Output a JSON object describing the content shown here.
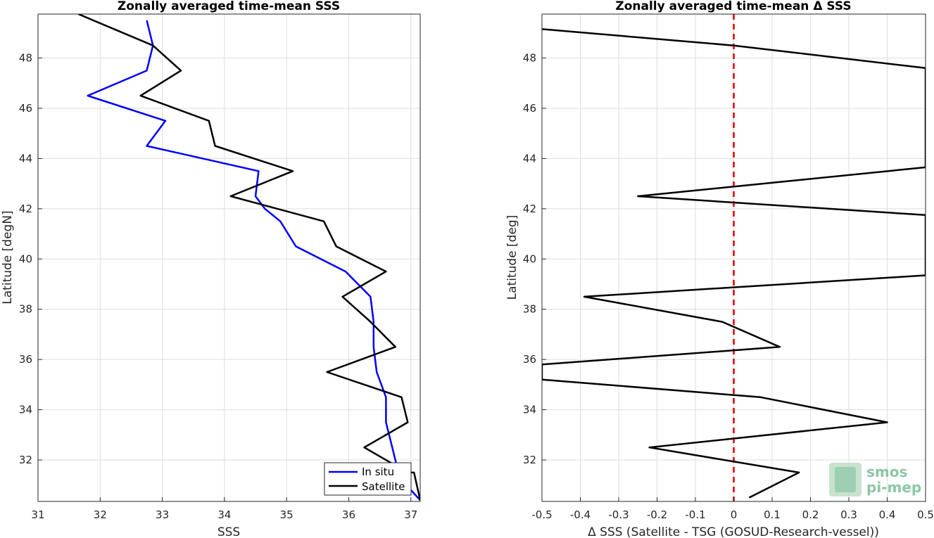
{
  "chart_data": [
    {
      "type": "line",
      "title": "Zonally averaged time-mean SSS",
      "xlabel": "SSS",
      "ylabel": "Latitude [degN]",
      "xlim": [
        31,
        37.15
      ],
      "ylim": [
        30.35,
        49.75
      ],
      "xticks": [
        31,
        32,
        33,
        34,
        35,
        36,
        37
      ],
      "yticks": [
        32,
        34,
        36,
        38,
        40,
        42,
        44,
        46,
        48
      ],
      "grid": true,
      "legend_position": "bottom-right",
      "series": [
        {
          "name": "In situ",
          "color": "#0000ff",
          "points": [
            [
              32.75,
              49.5
            ],
            [
              32.85,
              48.5
            ],
            [
              32.75,
              47.5
            ],
            [
              31.8,
              46.5
            ],
            [
              33.05,
              45.5
            ],
            [
              32.75,
              44.5
            ],
            [
              34.55,
              43.5
            ],
            [
              34.5,
              42.5
            ],
            [
              34.65,
              42.0
            ],
            [
              34.9,
              41.5
            ],
            [
              35.15,
              40.5
            ],
            [
              35.95,
              39.5
            ],
            [
              36.35,
              38.5
            ],
            [
              36.4,
              37.5
            ],
            [
              36.4,
              36.5
            ],
            [
              36.45,
              35.5
            ],
            [
              36.6,
              34.5
            ],
            [
              36.6,
              33.5
            ],
            [
              36.7,
              32.5
            ],
            [
              36.8,
              31.5
            ],
            [
              37.0,
              30.8
            ],
            [
              37.15,
              30.4
            ]
          ]
        },
        {
          "name": "Satellite",
          "color": "#000000",
          "points": [
            [
              31.65,
              49.75
            ],
            [
              32.85,
              48.5
            ],
            [
              33.3,
              47.5
            ],
            [
              32.65,
              46.5
            ],
            [
              33.75,
              45.5
            ],
            [
              33.85,
              44.5
            ],
            [
              35.1,
              43.5
            ],
            [
              34.1,
              42.5
            ],
            [
              35.6,
              41.5
            ],
            [
              35.8,
              40.5
            ],
            [
              36.6,
              39.5
            ],
            [
              35.9,
              38.5
            ],
            [
              36.35,
              37.5
            ],
            [
              36.75,
              36.5
            ],
            [
              35.65,
              35.5
            ],
            [
              36.85,
              34.5
            ],
            [
              36.95,
              33.5
            ],
            [
              36.25,
              32.5
            ],
            [
              36.95,
              31.5
            ],
            [
              37.05,
              31.5
            ],
            [
              37.15,
              30.4
            ]
          ]
        }
      ]
    },
    {
      "type": "line",
      "title": "Zonally averaged time-mean Δ SSS",
      "xlabel": "Δ SSS (Satellite - TSG (GOSUD-Research-vessel))",
      "ylabel": "Latitude [deg]",
      "xlim": [
        -0.5,
        0.5
      ],
      "ylim": [
        30.35,
        49.75
      ],
      "xticks": [
        -0.5,
        -0.4,
        -0.3,
        -0.2,
        -0.1,
        0,
        0.1,
        0.2,
        0.3,
        0.4,
        0.5
      ],
      "xtick_labels": [
        "-0.5",
        "-0.4",
        "-0.3",
        "-0.2",
        "-0.1",
        "0",
        "0.1",
        "0.2",
        "0.3",
        "0.4",
        "0.5"
      ],
      "yticks": [
        32,
        34,
        36,
        38,
        40,
        42,
        44,
        46,
        48
      ],
      "grid": true,
      "reference_line": {
        "x": 0,
        "color": "#e00000",
        "style": "dashed"
      },
      "series": [
        {
          "color": "#000000",
          "points": [
            [
              -0.5,
              49.15
            ],
            [
              0.0,
              48.5
            ],
            [
              0.5,
              47.6
            ],
            [
              0.5,
              43.65
            ],
            [
              -0.25,
              42.5
            ],
            [
              0.5,
              41.75
            ],
            [
              0.5,
              39.35
            ],
            [
              -0.39,
              38.5
            ],
            [
              -0.03,
              37.5
            ],
            [
              0.12,
              36.5
            ],
            [
              -0.5,
              35.8
            ],
            [
              -0.5,
              35.2
            ],
            [
              0.07,
              34.5
            ],
            [
              0.4,
              33.5
            ],
            [
              -0.22,
              32.5
            ],
            [
              0.17,
              31.5
            ],
            [
              0.04,
              30.5
            ]
          ]
        }
      ]
    }
  ],
  "watermark": {
    "line1": "smos",
    "line2": "pi-mep"
  }
}
